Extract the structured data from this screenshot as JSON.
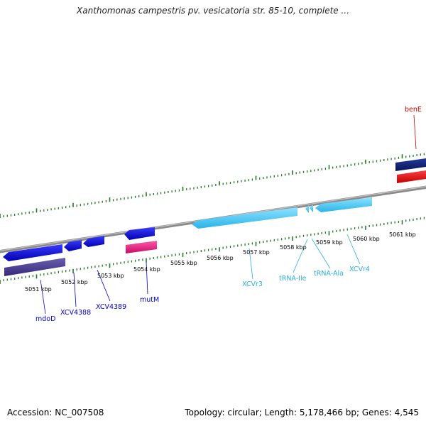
{
  "title": "Xanthomonas campestris pv. vesicatoria str. 85-10, complete ...",
  "footer": {
    "accession": "Accession: NC_007508",
    "summary": "Topology: circular; Length: 5,178,466 bp; Genes: 4,545"
  },
  "colors": {
    "tick": "#1e7a1e",
    "backbone": "#8a8a8a",
    "gene_dark_blue": "#0000cc",
    "gene_cyan": "#44c8f0",
    "gene_slate": "#4a3f8c",
    "gene_magenta": "#e0157a",
    "gene_navy": "#0a1a6a",
    "gene_red": "#e01010",
    "label_dark_blue": "#0000cc",
    "label_cyan": "#2aaee0",
    "label_red": "#cc0000"
  },
  "scale": {
    "tick_labels": [
      "5051 kbp",
      "5052 kbp",
      "5053 kbp",
      "5054 kbp",
      "5055 kbp",
      "5056 kbp",
      "5057 kbp",
      "5058 kbp",
      "5059 kbp",
      "5060 kbp",
      "5061 kbp"
    ]
  },
  "genes": [
    {
      "label": "mdoD",
      "color": "label_dark_blue"
    },
    {
      "label": "XCV4388",
      "color": "label_dark_blue"
    },
    {
      "label": "XCV4389",
      "color": "label_dark_blue"
    },
    {
      "label": "mutM",
      "color": "label_dark_blue"
    },
    {
      "label": "XCVr3",
      "color": "label_cyan"
    },
    {
      "label": "tRNA-Ile",
      "color": "label_cyan"
    },
    {
      "label": "tRNA-Ala",
      "color": "label_cyan"
    },
    {
      "label": "XCVr4",
      "color": "label_cyan"
    },
    {
      "label": "benE",
      "color": "label_red"
    }
  ]
}
